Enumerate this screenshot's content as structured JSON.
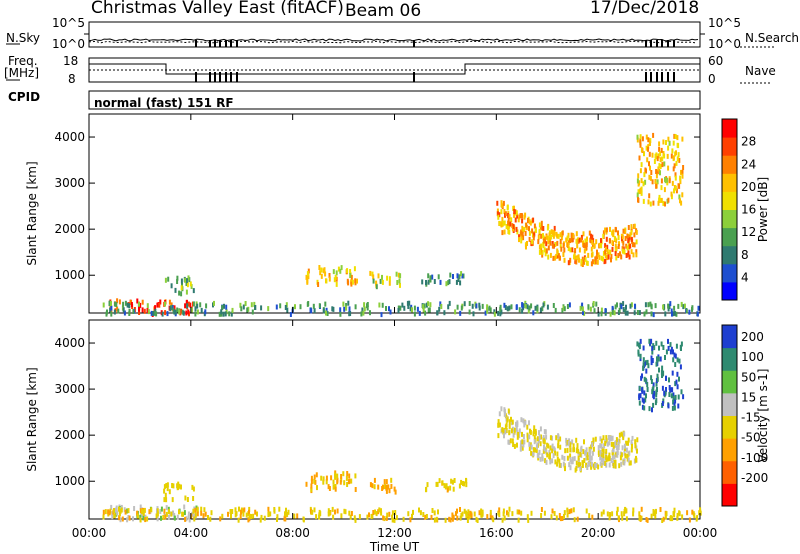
{
  "header": {
    "radar": "Christmas Valley East (fitACF)",
    "beam": "Beam 06",
    "date": "17/Dec/2018"
  },
  "noise_panel": {
    "left_label": "N.Sky",
    "right_label": "N.Search",
    "left_ticks": [
      "10^5",
      "10^0"
    ],
    "right_ticks": [
      "10^5",
      "10^0"
    ]
  },
  "freq_panel": {
    "left_label_line1": "Freq.",
    "left_label_line2": "[MHz]",
    "right_label": "Nave",
    "left_ticks": [
      "18",
      "8"
    ],
    "right_ticks": [
      "60",
      "0"
    ]
  },
  "cpid": {
    "label": "CPID",
    "mode": "normal (fast) 151 RF"
  },
  "colors": {
    "scale": [
      "#0000ff",
      "#1e4fd0",
      "#2f7a70",
      "#4aa050",
      "#8ccf3a",
      "#f0e000",
      "#ffc000",
      "#ff8000",
      "#ff4000",
      "#ff0000"
    ],
    "ground": "#c0c0c0"
  },
  "chart_data": [
    {
      "type": "heatmap",
      "title": "",
      "xlabel": "",
      "ylabel": "Slant Range [km]",
      "x_ticks": [
        "00:00",
        "04:00",
        "08:00",
        "12:00",
        "16:00",
        "20:00",
        "00:00"
      ],
      "x_range_hours": [
        0,
        24
      ],
      "y_ticks": [
        "1000",
        "2000",
        "3000",
        "4000"
      ],
      "ylim_km": [
        180,
        4500
      ],
      "colorbar": {
        "label": "Power [dB]",
        "ticks": [
          "4",
          "8",
          "12",
          "16",
          "20",
          "24",
          "28"
        ],
        "range": [
          0,
          32
        ]
      },
      "features": [
        {
          "name": "near-range E-region echoes",
          "hours": [
            0.8,
            4.2
          ],
          "range_km": [
            200,
            500
          ],
          "value_dB": 28
        },
        {
          "name": "ground/sea scatter band",
          "hours": [
            0.5,
            24
          ],
          "range_km": [
            200,
            450
          ],
          "value_dB": 10
        },
        {
          "name": "early patch",
          "hours": [
            2.9,
            4.1
          ],
          "range_km": [
            650,
            1000
          ],
          "value_dB": 12
        },
        {
          "name": "midday patch 1",
          "hours": [
            8.5,
            10.5
          ],
          "range_km": [
            850,
            1250
          ],
          "value_dB": 20
        },
        {
          "name": "midday patch 2",
          "hours": [
            11.0,
            12.2
          ],
          "range_km": [
            800,
            1100
          ],
          "value_dB": 16
        },
        {
          "name": "midday patch 3",
          "hours": [
            13.0,
            14.8
          ],
          "range_km": [
            850,
            1100
          ],
          "value_dB": 10
        },
        {
          "name": "far-range arc",
          "hours": [
            16.0,
            21.5
          ],
          "range_km": [
            1350,
            2600
          ],
          "value_dB": 22
        },
        {
          "name": "distant echoes",
          "hours": [
            21.5,
            23.3
          ],
          "range_km": [
            2600,
            4100
          ],
          "value_dB": 20
        }
      ]
    },
    {
      "type": "heatmap",
      "title": "",
      "xlabel": "Time UT",
      "ylabel": "Slant Range [km]",
      "x_ticks": [
        "00:00",
        "04:00",
        "08:00",
        "12:00",
        "16:00",
        "20:00",
        "00:00"
      ],
      "x_range_hours": [
        0,
        24
      ],
      "y_ticks": [
        "1000",
        "2000",
        "3000",
        "4000"
      ],
      "ylim_km": [
        180,
        4500
      ],
      "colorbar": {
        "label": "Velocity [m s-1]",
        "ticks": [
          "200",
          "100",
          "50",
          "15",
          "-15",
          "-50",
          "-100",
          "-200"
        ],
        "range": [
          -250,
          250
        ]
      },
      "features": [
        {
          "name": "near-range E-region echoes",
          "hours": [
            0.8,
            4.2
          ],
          "range_km": [
            200,
            500
          ],
          "value_ms": 50
        },
        {
          "name": "ground/sea scatter band",
          "hours": [
            0.5,
            24
          ],
          "range_km": [
            200,
            450
          ],
          "value_ms": -50
        },
        {
          "name": "early patch",
          "hours": [
            2.9,
            4.1
          ],
          "range_km": [
            650,
            1000
          ],
          "value_ms": -30
        },
        {
          "name": "midday patch 1",
          "hours": [
            8.5,
            10.5
          ],
          "range_km": [
            850,
            1250
          ],
          "value_ms": -60
        },
        {
          "name": "midday patch 2",
          "hours": [
            11.0,
            12.2
          ],
          "range_km": [
            800,
            1100
          ],
          "value_ms": -80
        },
        {
          "name": "midday patch 3",
          "hours": [
            13.0,
            14.8
          ],
          "range_km": [
            850,
            1100
          ],
          "value_ms": -40
        },
        {
          "name": "far-range arc",
          "hours": [
            16.0,
            21.5
          ],
          "range_km": [
            1350,
            2600
          ],
          "value_ms": 0
        },
        {
          "name": "distant echoes",
          "hours": [
            21.5,
            23.3
          ],
          "range_km": [
            2600,
            4100
          ],
          "value_ms": 180
        }
      ]
    }
  ]
}
